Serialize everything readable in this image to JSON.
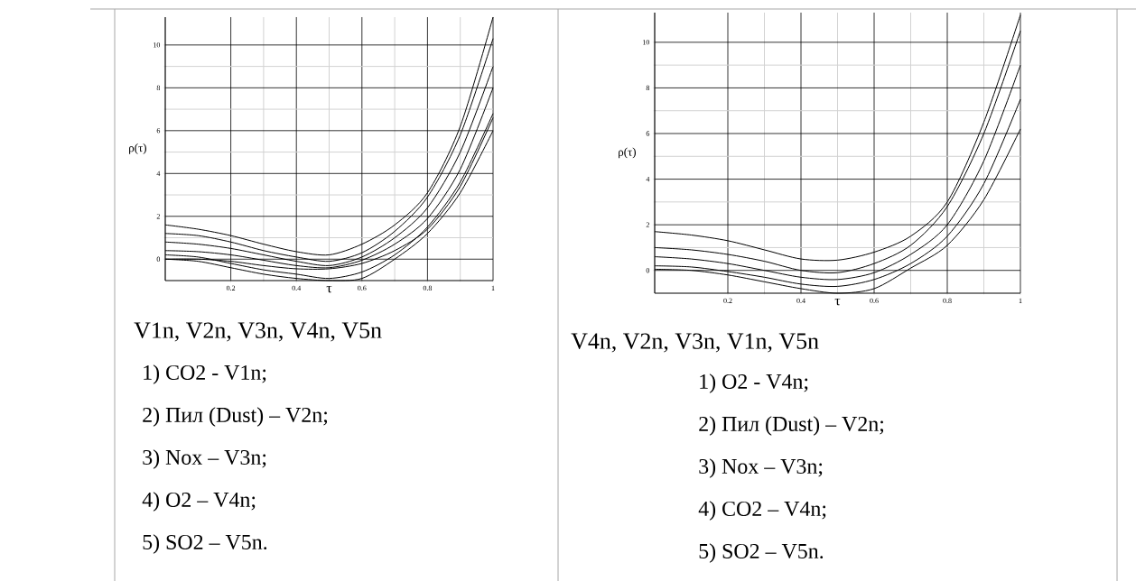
{
  "chart_data": [
    {
      "type": "line",
      "xlabel": "τ",
      "ylabel": "ρ(τ)",
      "xlim": [
        0,
        1
      ],
      "ylim": [
        -1,
        11.3
      ],
      "xticks": [
        0.2,
        0.4,
        0.6,
        0.8,
        1
      ],
      "yticks": [
        0,
        2,
        4,
        6,
        8,
        10
      ],
      "grid": true,
      "x": [
        0,
        0.1,
        0.2,
        0.3,
        0.4,
        0.5,
        0.6,
        0.7,
        0.8,
        0.9,
        1
      ],
      "series": [
        {
          "color": "#000000",
          "values": [
            1.6,
            1.4,
            1.1,
            0.7,
            0.35,
            0.2,
            0.7,
            1.6,
            3.1,
            6.2,
            11.3
          ]
        },
        {
          "color": "#000000",
          "values": [
            1.2,
            1.1,
            0.8,
            0.4,
            0.1,
            -0.1,
            0.3,
            1.3,
            2.9,
            5.8,
            10.3
          ]
        },
        {
          "color": "#000000",
          "values": [
            0.8,
            0.7,
            0.5,
            0.2,
            -0.1,
            -0.3,
            0.1,
            1.0,
            2.4,
            5.0,
            9.0
          ]
        },
        {
          "color": "#000000",
          "values": [
            0.4,
            0.35,
            0.2,
            -0.05,
            -0.3,
            -0.4,
            -0.05,
            0.7,
            1.9,
            4.2,
            8.0
          ]
        },
        {
          "color": "#000000",
          "values": [
            0,
            0,
            -0.1,
            -0.3,
            -0.45,
            -0.45,
            -0.2,
            0.4,
            1.4,
            3.4,
            6.6
          ]
        },
        {
          "color": "#000000",
          "values": [
            0.2,
            0.1,
            -0.2,
            -0.5,
            -0.7,
            -0.9,
            -0.6,
            0.2,
            1.5,
            3.6,
            6.8
          ]
        },
        {
          "color": "#000000",
          "values": [
            0,
            -0.1,
            -0.4,
            -0.7,
            -0.9,
            -1,
            -0.9,
            0,
            1.2,
            3.1,
            6.0
          ]
        }
      ],
      "annotations": [
        "V1n, V2n, V3n, V4n, V5n",
        "1) CO2 - V1n;",
        "2) Пил (Dust) – V2n;",
        "3) Nox – V3n;",
        "4) O2 – V4n;",
        "5) SO2 – V5n."
      ]
    },
    {
      "type": "line",
      "xlabel": "τ",
      "ylabel": "ρ(τ)",
      "xlim": [
        0,
        1
      ],
      "ylim": [
        -1,
        11.3
      ],
      "xticks": [
        0.2,
        0.4,
        0.6,
        0.8,
        1
      ],
      "yticks": [
        0,
        2,
        4,
        6,
        8,
        10
      ],
      "grid": true,
      "x": [
        0,
        0.1,
        0.2,
        0.3,
        0.4,
        0.5,
        0.6,
        0.7,
        0.8,
        0.9,
        1
      ],
      "series": [
        {
          "color": "#000000",
          "values": [
            1.7,
            1.55,
            1.3,
            0.9,
            0.5,
            0.45,
            0.8,
            1.5,
            3.0,
            6.5,
            11.2
          ]
        },
        {
          "color": "#000000",
          "values": [
            1.0,
            0.9,
            0.7,
            0.4,
            0.0,
            -0.1,
            0.3,
            1.1,
            2.8,
            6.0,
            10.5
          ]
        },
        {
          "color": "#000000",
          "values": [
            0.6,
            0.5,
            0.3,
            0,
            -0.3,
            -0.4,
            -0.1,
            0.7,
            2.0,
            4.8,
            9.0
          ]
        },
        {
          "color": "#000000",
          "values": [
            0.2,
            0.15,
            -0.05,
            -0.3,
            -0.6,
            -0.7,
            -0.4,
            0.3,
            1.5,
            3.8,
            7.5
          ]
        },
        {
          "color": "#000000",
          "values": [
            0.05,
            0,
            -0.2,
            -0.5,
            -0.8,
            -1,
            -0.8,
            0.1,
            1.1,
            3.1,
            6.2
          ]
        }
      ],
      "annotations": [
        "V4n, V2n, V3n, V1n, V5n",
        "1) O2 - V4n;",
        "2) Пил (Dust) – V2n;",
        "3) Nox – V3n;",
        "4) CO2 – V4n;",
        "5) SO2 – V5n."
      ]
    }
  ]
}
